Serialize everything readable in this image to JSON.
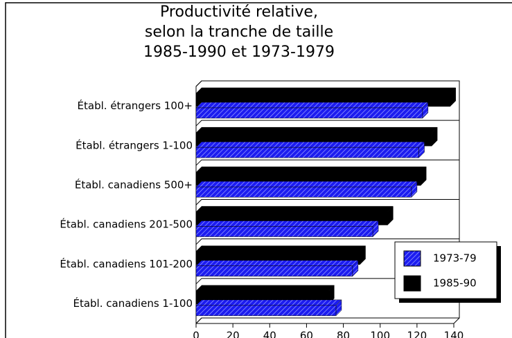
{
  "chart_data": {
    "type": "bar3d",
    "orientation": "horizontal",
    "title": [
      "Productivité relative,",
      "selon la tranche de taille",
      "1985-1990 et 1973-1979"
    ],
    "categories": [
      "Établ. étrangers 100+",
      "Établ. étrangers 1-100",
      "Établ. canadiens 500+",
      "Établ. canadiens 201-500",
      "Établ. canadiens 101-200",
      "Établ. canadiens 1-100"
    ],
    "series": [
      {
        "name": "1973-79",
        "color": "#1c1cf0",
        "values": [
          123,
          121,
          117,
          96,
          85,
          76
        ]
      },
      {
        "name": "1985-90",
        "color": "#000000",
        "values": [
          138,
          128,
          122,
          104,
          89,
          72
        ]
      }
    ],
    "xlim": [
      0,
      140
    ],
    "xticks": [
      0,
      20,
      40,
      60,
      80,
      100,
      120,
      140
    ],
    "legend": "lower right"
  }
}
